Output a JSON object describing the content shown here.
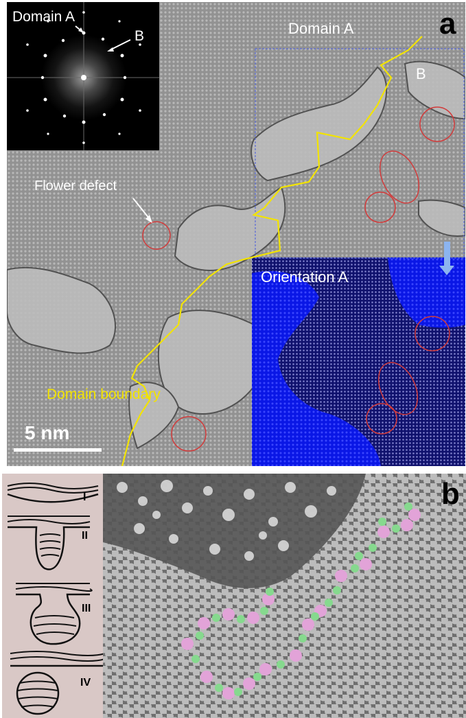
{
  "panel_a": {
    "letter": "a",
    "inset_labels": {
      "domain_a": "Domain A",
      "b": "B"
    },
    "labels": {
      "domain_a_top": "Domain A",
      "b_right": "B",
      "flower_defect": "Flower defect",
      "orientation_a": "Orientation A",
      "domain_boundary": "Domain boundary",
      "scale_bar": "5 nm"
    },
    "colors": {
      "boundary": "#f2e300",
      "defect_circle": "#d23a3a",
      "orientation_overlay": "#0a17e6",
      "text": "#ffffff"
    }
  },
  "panel_b": {
    "letter": "b",
    "stages": [
      "I",
      "II",
      "III",
      "IV"
    ],
    "colors": {
      "pink_atom": "#e2a3d8",
      "green_atom": "#86d98e",
      "background": "#d9c8c6"
    }
  }
}
